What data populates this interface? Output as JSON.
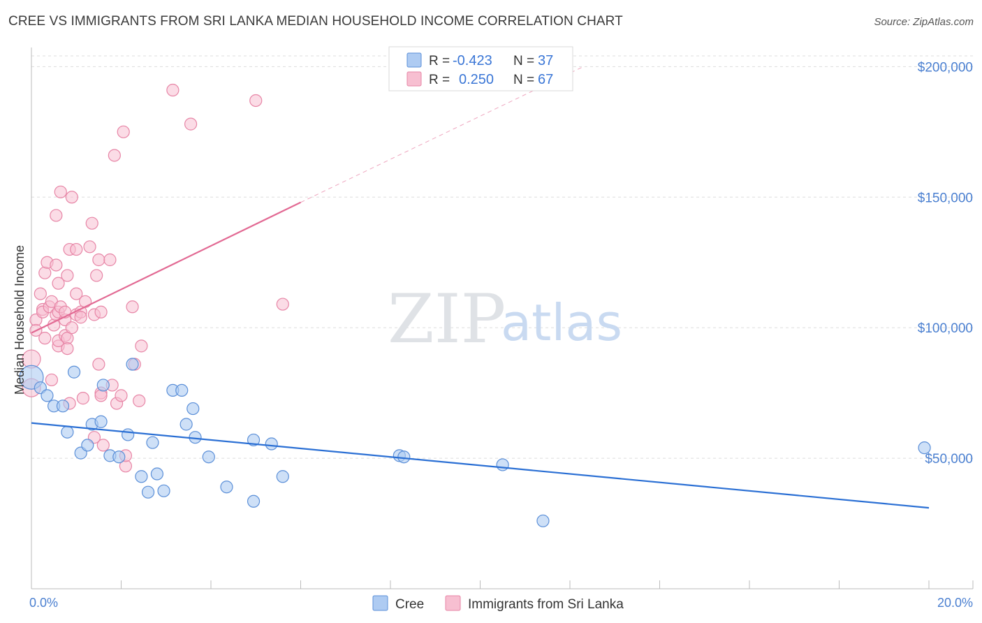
{
  "title": "CREE VS IMMIGRANTS FROM SRI LANKA MEDIAN HOUSEHOLD INCOME CORRELATION CHART",
  "source": "Source: ZipAtlas.com",
  "watermark": {
    "zip": "ZIP",
    "atlas": "atlas"
  },
  "legend_top": {
    "rows": [
      {
        "r_label": "R =",
        "r_value": "-0.423",
        "n_label": "N =",
        "n_value": "37"
      },
      {
        "r_label": "R =",
        "r_value": "0.250",
        "n_label": "N =",
        "n_value": "67"
      }
    ]
  },
  "legend_bottom": [
    "Cree",
    "Immigrants from Sri Lanka"
  ],
  "colors": {
    "cree_fill": "#aecbf2",
    "cree_stroke": "#5b8fd8",
    "cree_line": "#2a6fd4",
    "sri_fill": "#f7bfd1",
    "sri_stroke": "#e785a6",
    "sri_line": "#e26993",
    "tick_text": "#4a7fd0",
    "grid": "#dddddd"
  },
  "chart_data": {
    "type": "scatter",
    "title": "CREE VS IMMIGRANTS FROM SRI LANKA MEDIAN HOUSEHOLD INCOME CORRELATION CHART",
    "xlabel": "",
    "ylabel": "Median Household Income",
    "xlim": [
      0,
      20
    ],
    "ylim": [
      0,
      210000
    ],
    "x_tick_labels": [
      "0.0%",
      "20.0%"
    ],
    "y_ticks": [
      50000,
      100000,
      150000,
      200000
    ],
    "y_tick_labels": [
      "$50,000",
      "$100,000",
      "$150,000",
      "$200,000"
    ],
    "grid": true,
    "legend_position": "bottom",
    "series": [
      {
        "name": "Cree",
        "r": -0.423,
        "n": 37,
        "trend": {
          "x": [
            0,
            20
          ],
          "y": [
            63500,
            31000
          ]
        },
        "points": [
          [
            0.0,
            81000
          ],
          [
            0.2,
            77000
          ],
          [
            0.35,
            74000
          ],
          [
            0.5,
            70000
          ],
          [
            0.7,
            70000
          ],
          [
            0.8,
            60000
          ],
          [
            0.95,
            83000
          ],
          [
            1.1,
            52000
          ],
          [
            1.25,
            55000
          ],
          [
            1.35,
            63000
          ],
          [
            1.55,
            64000
          ],
          [
            1.6,
            78000
          ],
          [
            1.75,
            51000
          ],
          [
            1.95,
            50500
          ],
          [
            2.15,
            59000
          ],
          [
            2.25,
            86000
          ],
          [
            2.45,
            43000
          ],
          [
            2.6,
            37000
          ],
          [
            2.7,
            56000
          ],
          [
            2.8,
            44000
          ],
          [
            2.95,
            37500
          ],
          [
            3.15,
            76000
          ],
          [
            3.35,
            76000
          ],
          [
            3.45,
            63000
          ],
          [
            3.6,
            69000
          ],
          [
            3.65,
            58000
          ],
          [
            3.95,
            50500
          ],
          [
            4.35,
            39000
          ],
          [
            4.95,
            57000
          ],
          [
            4.95,
            33500
          ],
          [
            5.35,
            55500
          ],
          [
            5.6,
            43000
          ],
          [
            8.2,
            51000
          ],
          [
            8.3,
            50500
          ],
          [
            10.5,
            47500
          ],
          [
            11.4,
            26000
          ],
          [
            19.9,
            54000
          ]
        ]
      },
      {
        "name": "Immigrants from Sri Lanka",
        "r": 0.25,
        "n": 67,
        "trend": {
          "x": [
            0,
            6
          ],
          "y": [
            98000,
            148000
          ]
        },
        "trend_dashed": {
          "x": [
            6,
            12.3
          ],
          "y": [
            148000,
            200000
          ]
        },
        "points": [
          [
            0.0,
            88000
          ],
          [
            0.0,
            77000
          ],
          [
            0.1,
            103000
          ],
          [
            0.1,
            99000
          ],
          [
            0.2,
            113000
          ],
          [
            0.25,
            107000
          ],
          [
            0.25,
            106000
          ],
          [
            0.3,
            96000
          ],
          [
            0.3,
            121000
          ],
          [
            0.35,
            125000
          ],
          [
            0.4,
            108000
          ],
          [
            0.45,
            110000
          ],
          [
            0.45,
            80000
          ],
          [
            0.5,
            101000
          ],
          [
            0.55,
            105000
          ],
          [
            0.6,
            93000
          ],
          [
            0.6,
            106000
          ],
          [
            0.6,
            95000
          ],
          [
            0.6,
            117000
          ],
          [
            0.65,
            108000
          ],
          [
            0.75,
            103000
          ],
          [
            0.55,
            143000
          ],
          [
            0.55,
            124000
          ],
          [
            0.65,
            152000
          ],
          [
            0.75,
            106000
          ],
          [
            0.75,
            97000
          ],
          [
            0.8,
            96000
          ],
          [
            0.8,
            92000
          ],
          [
            0.8,
            120000
          ],
          [
            0.85,
            71000
          ],
          [
            0.85,
            130000
          ],
          [
            0.9,
            150000
          ],
          [
            0.9,
            100000
          ],
          [
            1.0,
            105000
          ],
          [
            1.1,
            106000
          ],
          [
            1.0,
            113000
          ],
          [
            1.0,
            130000
          ],
          [
            1.1,
            104000
          ],
          [
            1.15,
            73000
          ],
          [
            1.2,
            110000
          ],
          [
            1.3,
            131000
          ],
          [
            1.35,
            140000
          ],
          [
            1.4,
            105000
          ],
          [
            1.4,
            58000
          ],
          [
            1.45,
            120000
          ],
          [
            1.5,
            86000
          ],
          [
            1.5,
            126000
          ],
          [
            1.55,
            106000
          ],
          [
            1.55,
            75000
          ],
          [
            1.55,
            74000
          ],
          [
            1.6,
            55000
          ],
          [
            1.75,
            126000
          ],
          [
            1.8,
            78000
          ],
          [
            1.85,
            166000
          ],
          [
            1.9,
            71000
          ],
          [
            2.0,
            74000
          ],
          [
            2.05,
            175000
          ],
          [
            2.1,
            47000
          ],
          [
            2.1,
            51000
          ],
          [
            2.25,
            108000
          ],
          [
            2.3,
            86000
          ],
          [
            2.4,
            72000
          ],
          [
            2.45,
            93000
          ],
          [
            3.15,
            191000
          ],
          [
            3.55,
            178000
          ],
          [
            5.0,
            187000
          ],
          [
            5.6,
            109000
          ]
        ]
      }
    ]
  }
}
